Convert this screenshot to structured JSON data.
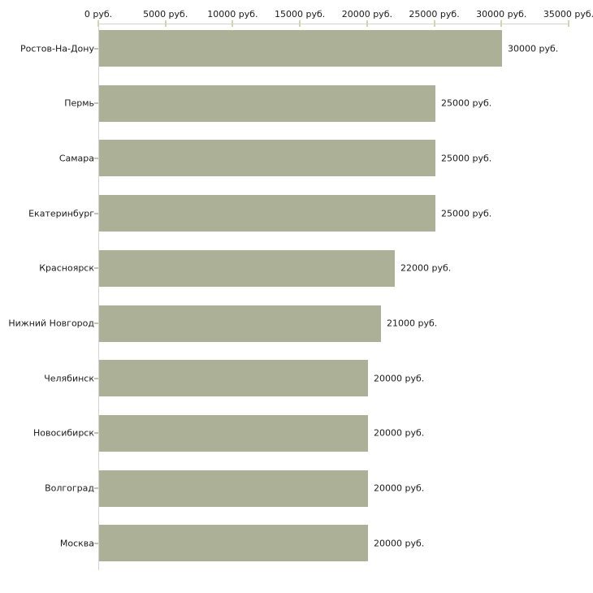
{
  "chart_data": {
    "type": "bar",
    "orientation": "horizontal",
    "title": "",
    "xlabel": "",
    "ylabel": "",
    "grid": false,
    "legend": false,
    "categories": [
      "Ростов-На-Дону",
      "Пермь",
      "Самара",
      "Екатеринбург",
      "Красноярск",
      "Нижний Новгород",
      "Челябинск",
      "Новосибирск",
      "Волгоград",
      "Москва"
    ],
    "values": [
      30000,
      25000,
      25000,
      25000,
      22000,
      21000,
      20000,
      20000,
      20000,
      20000
    ],
    "value_labels": [
      "30000 руб.",
      "25000 руб.",
      "25000 руб.",
      "25000 руб.",
      "22000 руб.",
      "21000 руб.",
      "20000 руб.",
      "20000 руб.",
      "20000 руб.",
      "20000 руб."
    ],
    "xlim": [
      0,
      35000
    ],
    "x_tick_values": [
      0,
      5000,
      10000,
      15000,
      20000,
      25000,
      30000,
      35000
    ],
    "x_tick_labels": [
      "0 руб.",
      "5000 руб.",
      "10000 руб.",
      "15000 руб.",
      "20000 руб.",
      "25000 руб.",
      "30000 руб.",
      "35000 руб."
    ],
    "colors": {
      "bar": "#abb096",
      "axis_line": "#d3d3d3",
      "x_tick": "#d2d4ab",
      "y_tick": "#c2c2b2",
      "text": "#1a1a1a",
      "background": "#ffffff"
    }
  }
}
